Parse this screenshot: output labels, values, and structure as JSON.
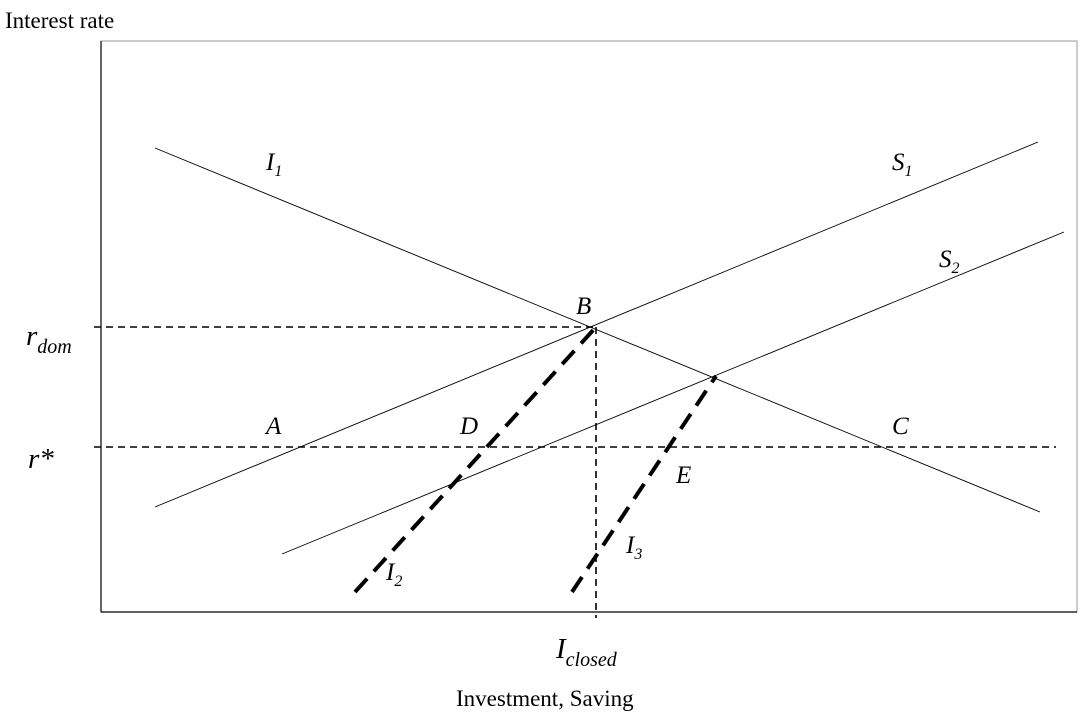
{
  "chart_data": {
    "type": "diagram",
    "axes": {
      "y_label": "Interest rate",
      "x_label": "Investment, Saving"
    },
    "curves": [
      {
        "id": "I1",
        "name": "I",
        "subscript": "1",
        "style": "solid"
      },
      {
        "id": "S1",
        "name": "S",
        "subscript": "1",
        "style": "solid"
      },
      {
        "id": "S2",
        "name": "S",
        "subscript": "2",
        "style": "solid"
      },
      {
        "id": "I2",
        "name": "I",
        "subscript": "2",
        "style": "thick-dashed"
      },
      {
        "id": "I3",
        "name": "I",
        "subscript": "3",
        "style": "thick-dashed"
      }
    ],
    "points": [
      "A",
      "B",
      "C",
      "D",
      "E"
    ],
    "reference_lines": {
      "r_dom": {
        "symbol": "r",
        "subscript": "dom"
      },
      "r_star": {
        "symbol": "r*"
      },
      "i_closed": {
        "symbol": "I",
        "subscript": "closed"
      }
    }
  },
  "colors": {
    "line": "#000000",
    "background": "#ffffff",
    "frame": "#888888"
  }
}
